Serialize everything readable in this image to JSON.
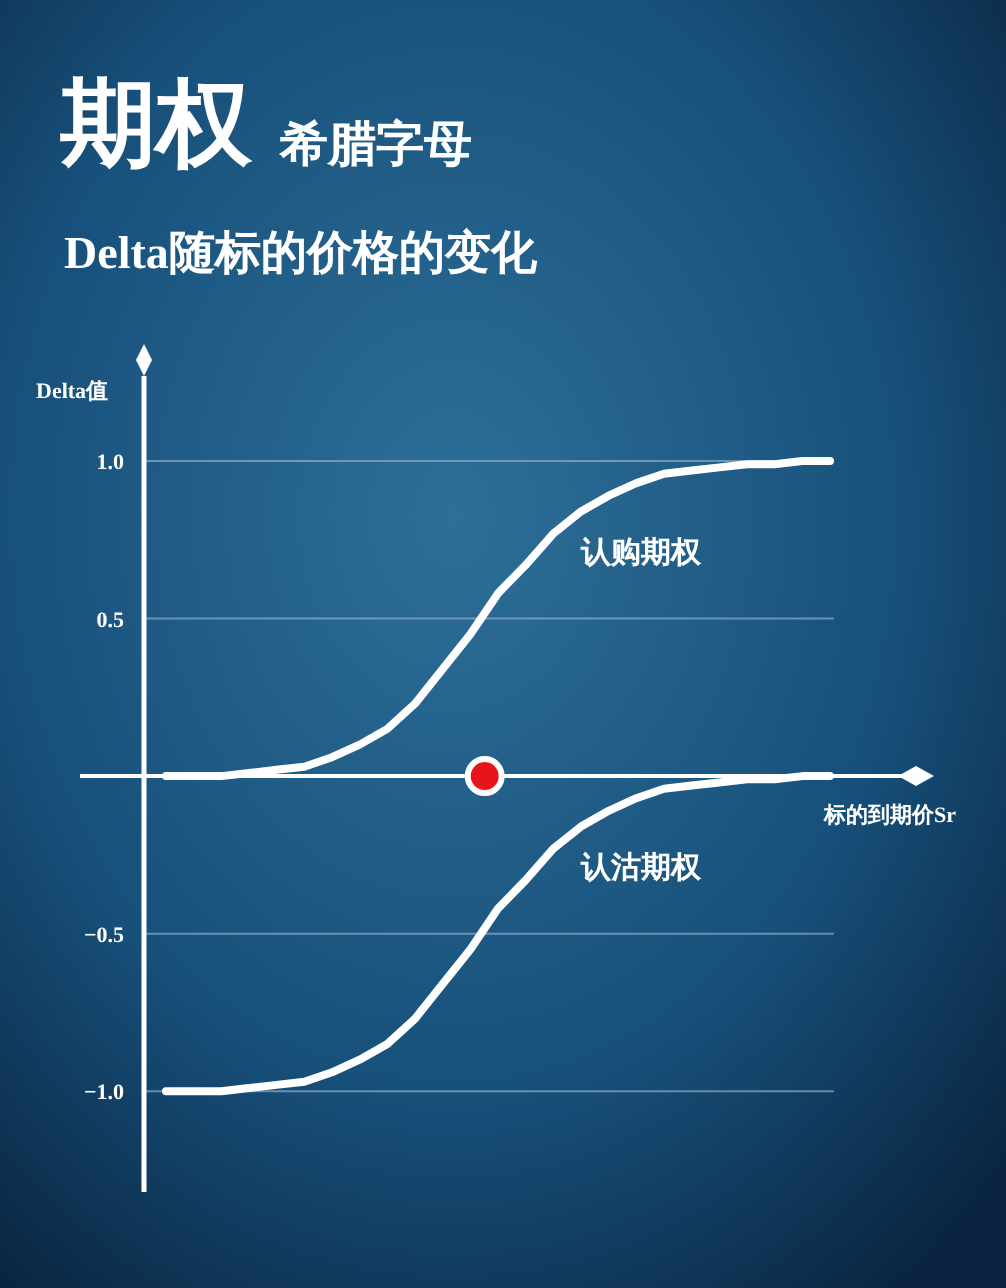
{
  "chart_data": {
    "type": "line",
    "title": "期权",
    "subtitle": "希腊字母",
    "annotations": [
      "Delta随标的价格的变化"
    ],
    "xlabel": "标的到期价Sr",
    "ylabel": "Delta值",
    "categories": [
      null,
      null,
      null,
      null,
      null,
      null,
      null,
      null,
      null,
      null,
      null,
      null,
      null,
      null,
      null,
      null,
      null,
      null,
      null,
      null,
      null,
      null,
      null,
      null,
      null
    ],
    "ylim": [
      -1.32,
      1.27
    ],
    "yticks": [
      {
        "value": 1,
        "label": "1.0"
      },
      {
        "value": 0.5,
        "label": "0.5"
      },
      {
        "value": -0.5,
        "label": "−0.5"
      },
      {
        "value": -1,
        "label": "−1.0"
      }
    ],
    "tick_labels": "y",
    "grid": "y",
    "marker": "none",
    "line_style": "solid",
    "series": [
      {
        "name": "认购期权",
        "color": "#ffffff",
        "values": [
          0,
          0,
          0,
          0.01,
          0.02,
          0.03,
          0.06,
          0.1,
          0.15,
          0.23,
          0.34,
          0.45,
          0.58,
          0.67,
          0.77,
          0.84,
          0.89,
          0.93,
          0.96,
          0.97,
          0.98,
          0.99,
          0.99,
          1,
          1
        ]
      },
      {
        "name": "认沽期权",
        "color": "#ffffff",
        "values": [
          -1,
          -1,
          -1,
          -0.99,
          -0.98,
          -0.97,
          -0.94,
          -0.9,
          -0.85,
          -0.77,
          -0.66,
          -0.55,
          -0.42,
          -0.33,
          -0.23,
          -0.16,
          -0.11,
          -0.07,
          -0.04,
          -0.03,
          -0.02,
          -0.01,
          -0.01,
          0,
          0
        ]
      }
    ]
  }
}
